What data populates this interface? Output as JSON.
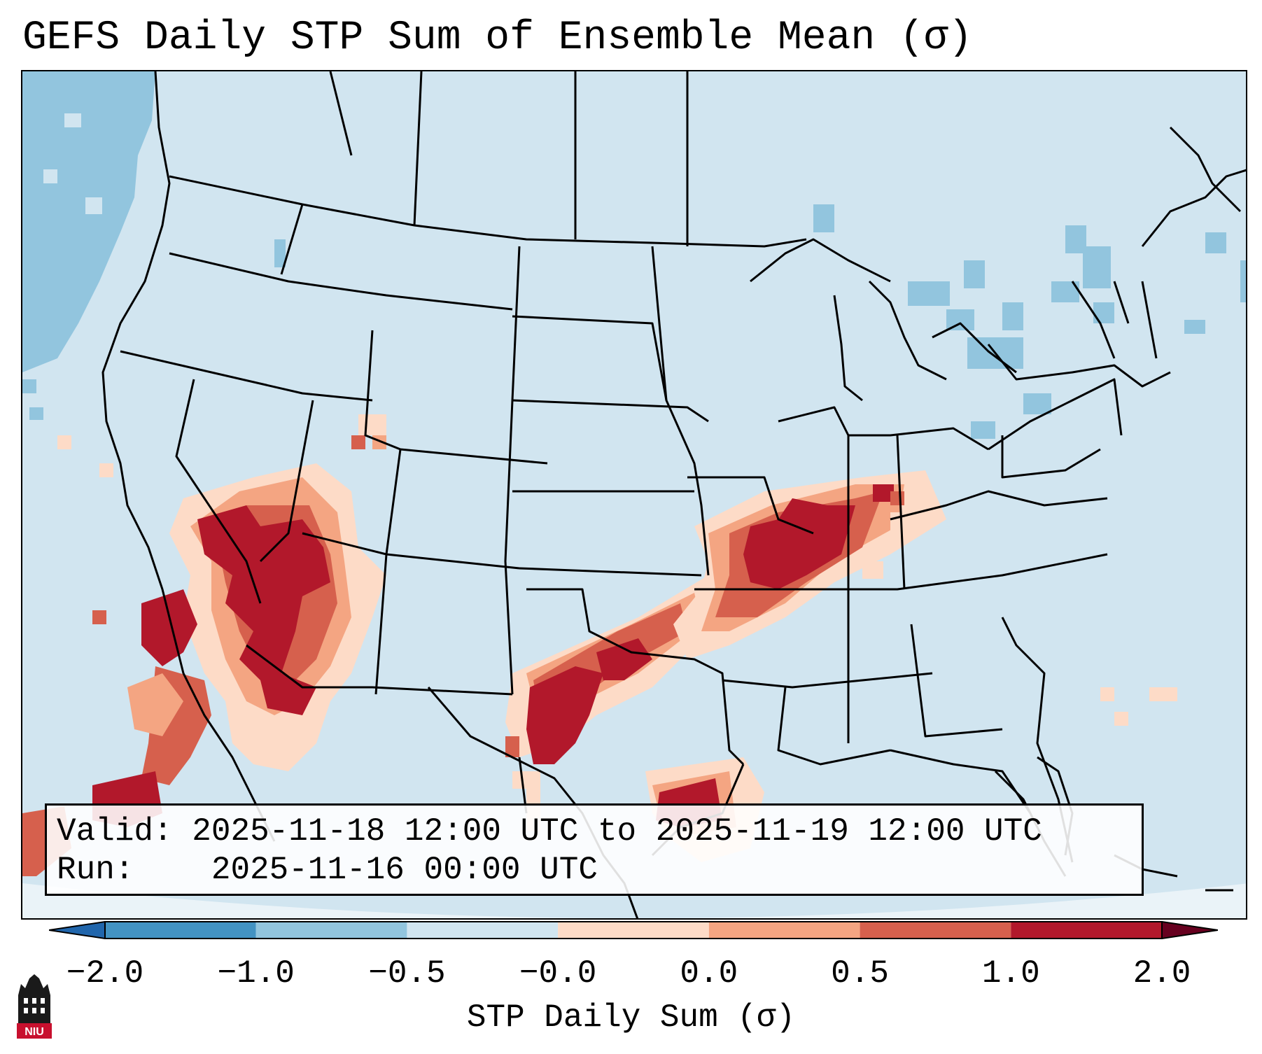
{
  "title": "GEFS Daily STP Sum of Ensemble Mean (σ)",
  "info": {
    "valid_label": "Valid:",
    "valid_value": "2025-11-18 12:00 UTC to 2025-11-19 12:00 UTC",
    "run_label": "Run:",
    "run_value": "2025-11-16 00:00 UTC"
  },
  "colorbar": {
    "label": "STP Daily Sum (σ)",
    "ticks": [
      "−2.0",
      "−1.0",
      "−0.5",
      "−0.0",
      "0.0",
      "0.5",
      "1.0",
      "2.0"
    ],
    "colors": [
      "#4393c3",
      "#92c5de",
      "#d1e5f0",
      "#fddbc7",
      "#f4a582",
      "#d6604d",
      "#b2182b"
    ],
    "under_color": "#2166ac",
    "over_color": "#67001f"
  },
  "logo": {
    "text": "NIU",
    "icon": "university-tower-icon"
  },
  "map_data": {
    "type": "gridded-field",
    "variable": "STP Daily Sum (σ)",
    "background_color": "#d1e5f0",
    "regions": [
      {
        "name": "Mississippi Valley maximum",
        "level": "≥1.0"
      },
      {
        "name": "North/Central Texas maximum",
        "level": "≥1.0"
      },
      {
        "name": "Upper Texas coast maximum",
        "level": "≥1.0"
      },
      {
        "name": "Southwest / Arizona maximum",
        "level": "≥1.0"
      },
      {
        "name": "Baja California and Gulf of California",
        "level": "≥1.0"
      },
      {
        "name": "Pacific Northwest offshore",
        "level": "−1.0 to −0.5"
      },
      {
        "name": "Great Lakes and Northeast",
        "level": "−1.0 to −0.5"
      }
    ]
  }
}
